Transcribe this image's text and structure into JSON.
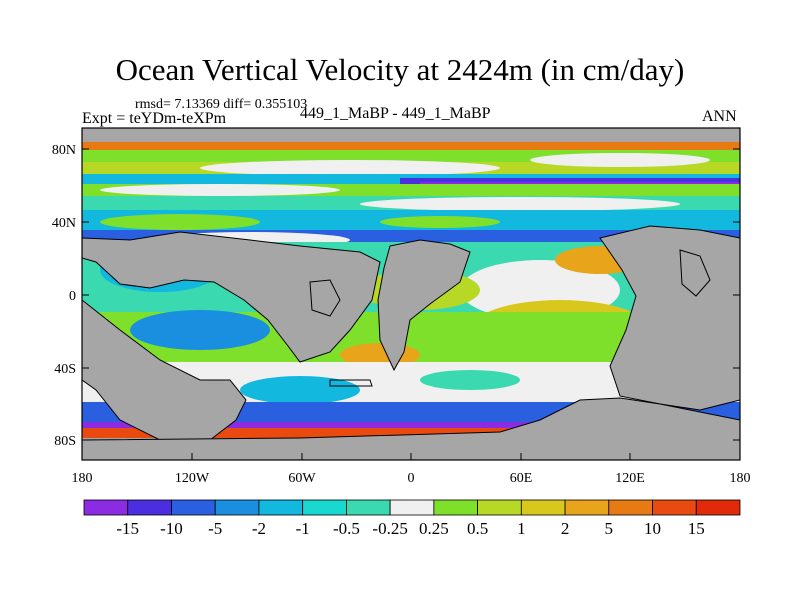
{
  "title": "Ocean Vertical Velocity at 2424m (in cm/day)",
  "stats": "rmsd= 7.13369 diff= 0.355103",
  "expt": "Expt = teYDm-teXPm",
  "center_label": "449_1_MaBP - 449_1_MaBP",
  "season": "ANN",
  "lat_ticks": [
    "80N",
    "40N",
    "0",
    "40S",
    "80S"
  ],
  "lon_ticks": [
    "180",
    "120W",
    "60W",
    "0",
    "60E",
    "120E",
    "180"
  ],
  "colorbar": {
    "labels": [
      "-15",
      "-10",
      "-5",
      "-2",
      "-1",
      "-0.5",
      "-0.25",
      "0.25",
      "0.5",
      "1",
      "2",
      "5",
      "10",
      "15"
    ],
    "colors": [
      "#8b2be2",
      "#4a2ee0",
      "#2a5fe0",
      "#1a8fe0",
      "#12b8de",
      "#18d8d0",
      "#3ad9b0",
      "#f0f0f0",
      "#7ee02a",
      "#b8d826",
      "#d8c81e",
      "#e8a41a",
      "#e87a14",
      "#e84a10",
      "#e02a0a"
    ]
  },
  "land_color": "#a6a6a6"
}
